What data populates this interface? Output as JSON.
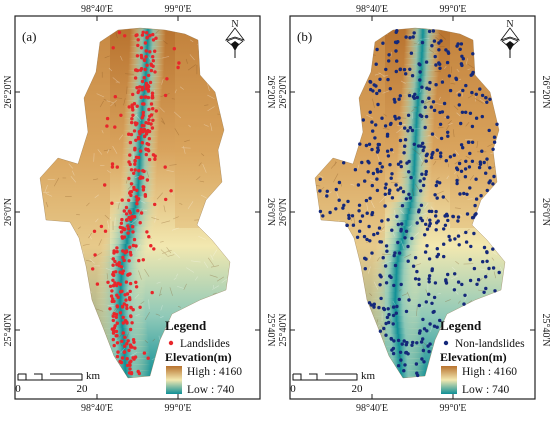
{
  "panels": [
    {
      "id": "a",
      "label": "(a)",
      "legend_title": "Legend",
      "point_label": "Landslides",
      "point_color": "#e8262b",
      "elevation_title": "Elevation(m)",
      "high_label": "High : 4160",
      "low_label": "Low : 740",
      "scale_label": "km",
      "scale_zero": "0",
      "scale_twenty": "20",
      "lon_ticks": [
        "98°40'E",
        "99°0'E"
      ],
      "lat_ticks": [
        "26°20'N",
        "26°0'N",
        "25°40'N"
      ],
      "north_label": "N",
      "relief": "landslide"
    },
    {
      "id": "b",
      "label": "(b)",
      "legend_title": "Legend",
      "point_label": "Non-landslides",
      "point_color": "#14287a",
      "elevation_title": "Elevation(m)",
      "high_label": "High : 4160",
      "low_label": "Low : 740",
      "scale_label": "km",
      "scale_zero": "0",
      "scale_twenty": "20",
      "lon_ticks": [
        "98°40'E",
        "99°0'E"
      ],
      "lat_ticks": [
        "26°20'N",
        "26°0'N",
        "25°40'N"
      ],
      "north_label": "N",
      "relief": "nonlandslide"
    }
  ],
  "colors": {
    "elev_high": "#b8722e",
    "elev_mid_high": "#d9a45e",
    "elev_mid": "#f2e8b0",
    "elev_mid_low": "#8fc9b8",
    "elev_low": "#0f8f96",
    "frame": "#222222"
  }
}
